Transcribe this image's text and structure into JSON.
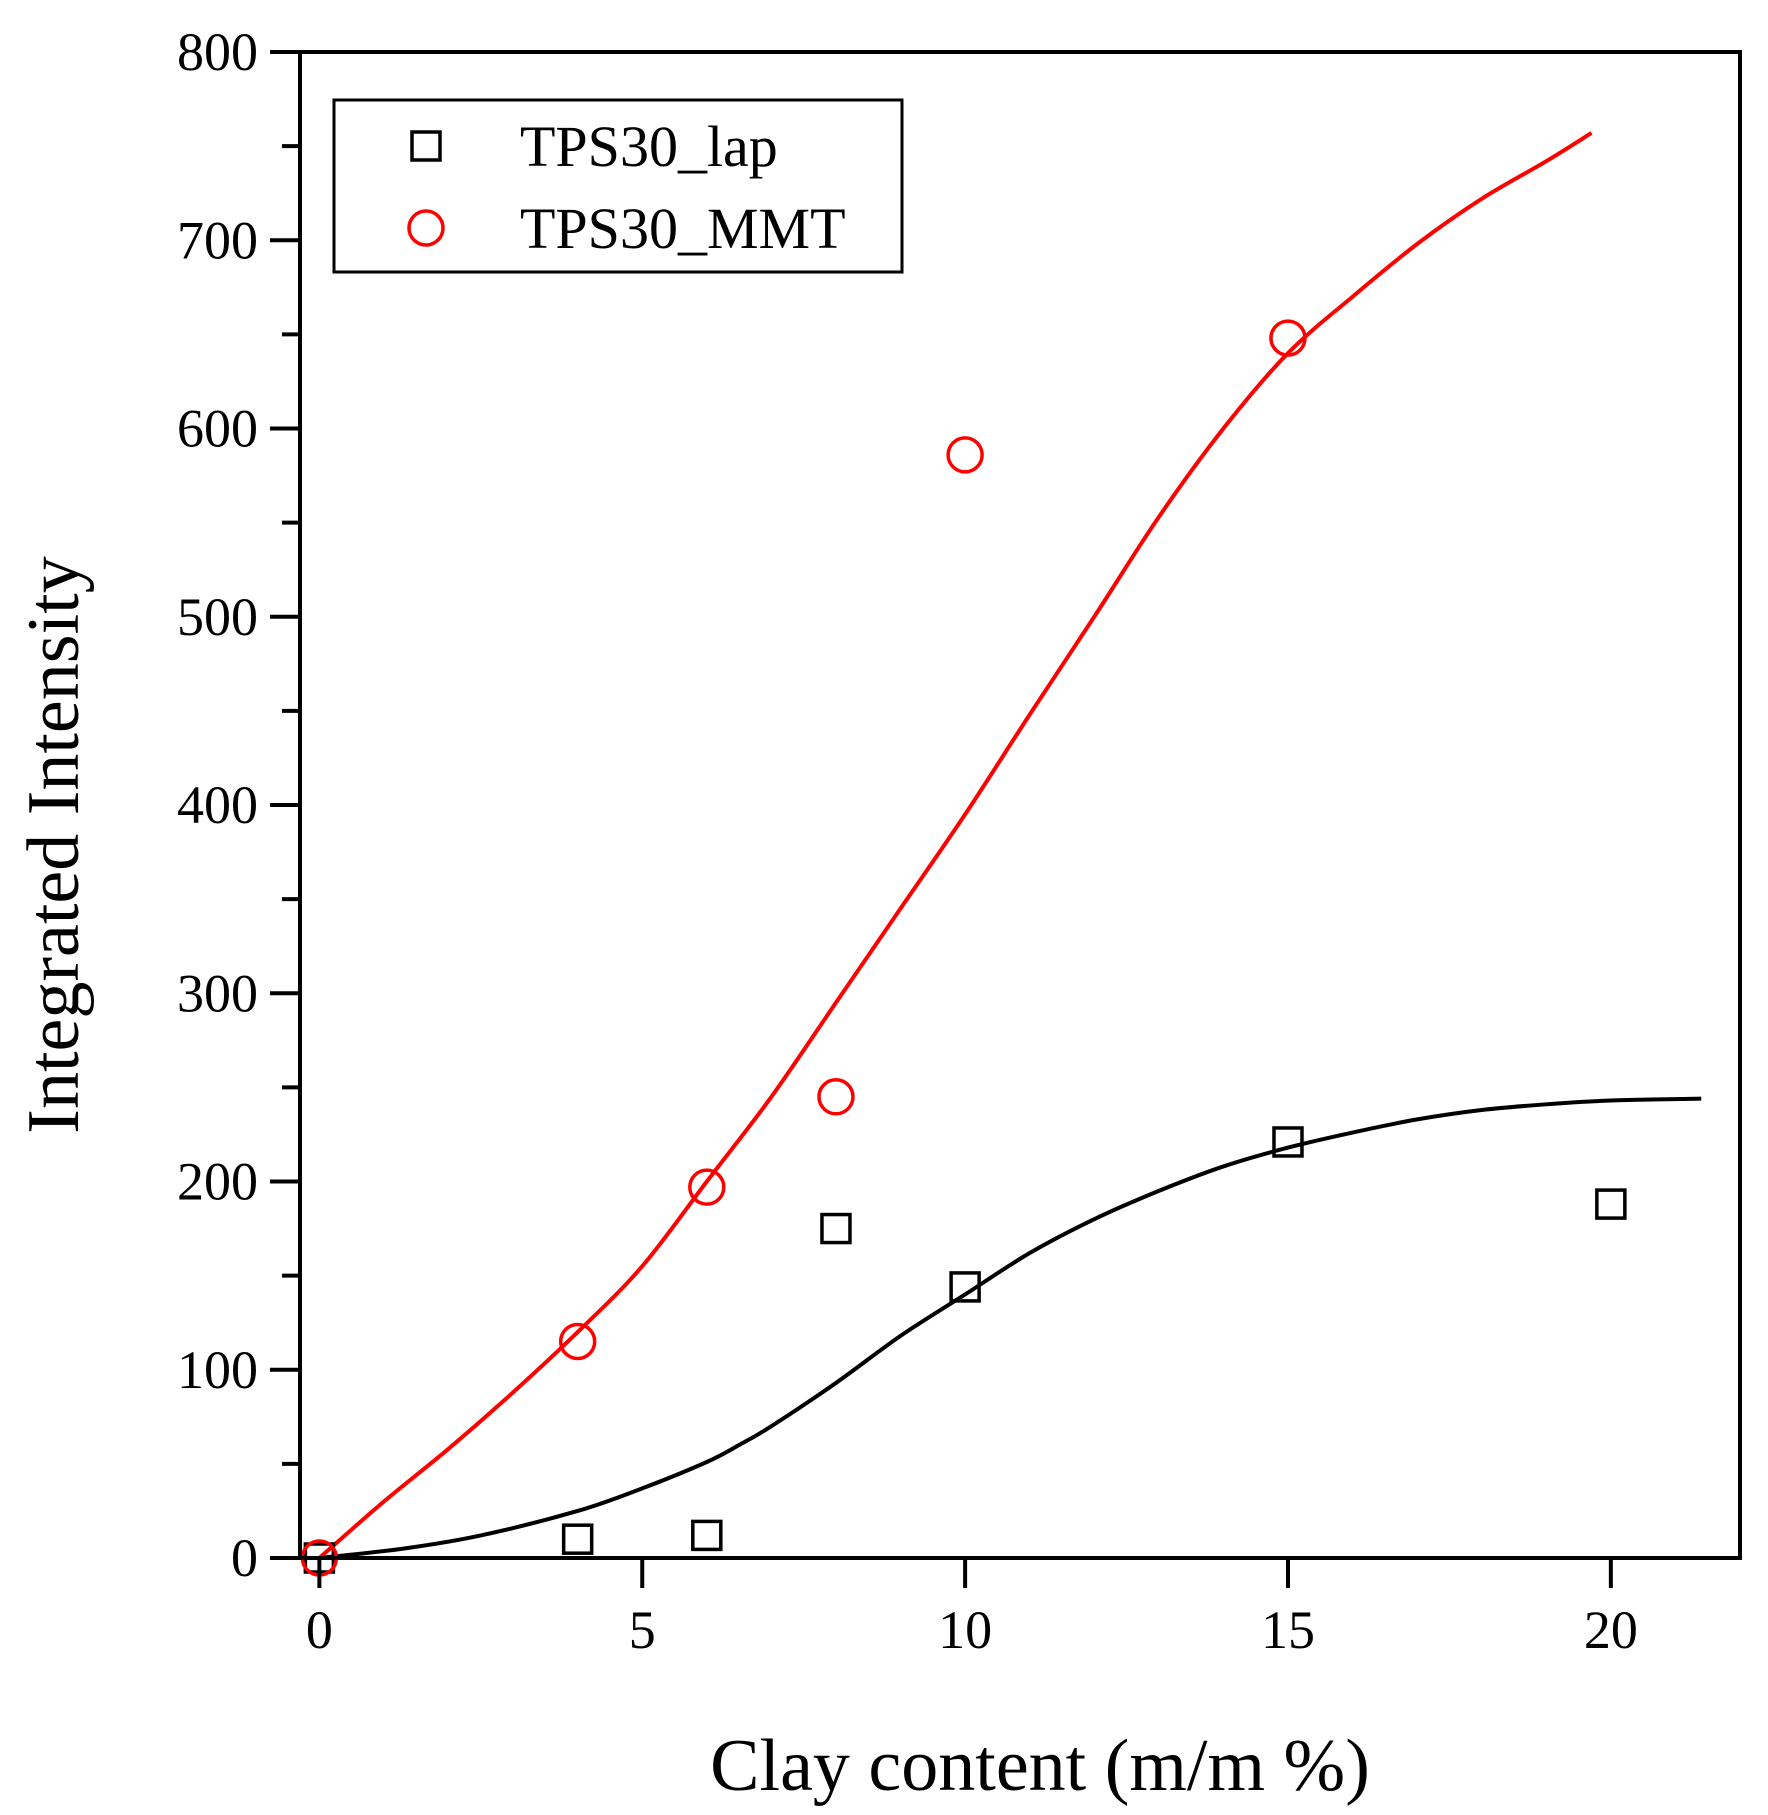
{
  "chart_data": {
    "type": "scatter",
    "title": "",
    "xlabel": "Clay content (m/m %)",
    "ylabel": "Integrated Intensity",
    "xlim": [
      -0.3,
      22
    ],
    "ylim": [
      0,
      800
    ],
    "x_ticks": [
      0,
      5,
      10,
      15,
      20
    ],
    "x_tick_labels": [
      "0",
      "5",
      "10",
      "15",
      "20"
    ],
    "y_ticks": [
      0,
      100,
      200,
      300,
      400,
      500,
      600,
      700,
      800
    ],
    "y_tick_labels": [
      "0",
      "100",
      "200",
      "300",
      "400",
      "500",
      "600",
      "700",
      "800"
    ],
    "legend_position": "top-left",
    "series": [
      {
        "name": "TPS30_lap",
        "marker": "square",
        "color": "#000000",
        "points": [
          [
            0,
            0
          ],
          [
            4,
            10
          ],
          [
            6,
            12
          ],
          [
            8,
            175
          ],
          [
            10,
            144
          ],
          [
            15,
            221
          ],
          [
            20,
            188
          ]
        ],
        "fit": [
          [
            0,
            0
          ],
          [
            1.3,
            5
          ],
          [
            2.5,
            12
          ],
          [
            4,
            25
          ],
          [
            5,
            37
          ],
          [
            6,
            51
          ],
          [
            6.5,
            60
          ],
          [
            7,
            70
          ],
          [
            8,
            93
          ],
          [
            9,
            118
          ],
          [
            10,
            140
          ],
          [
            11,
            162
          ],
          [
            12,
            180
          ],
          [
            13,
            195
          ],
          [
            14,
            208
          ],
          [
            15,
            218
          ],
          [
            16,
            226
          ],
          [
            17,
            233
          ],
          [
            18,
            238
          ],
          [
            19,
            241
          ],
          [
            20,
            243
          ],
          [
            21.4,
            244
          ]
        ]
      },
      {
        "name": "TPS30_MMT",
        "marker": "circle",
        "color": "#ff0000",
        "points": [
          [
            0,
            0
          ],
          [
            4,
            115
          ],
          [
            6,
            197
          ],
          [
            8,
            245
          ],
          [
            10,
            586
          ],
          [
            15,
            648
          ]
        ],
        "fit": [
          [
            0,
            0
          ],
          [
            1,
            30
          ],
          [
            2,
            58
          ],
          [
            3,
            88
          ],
          [
            4,
            120
          ],
          [
            5,
            155
          ],
          [
            6,
            200
          ],
          [
            7,
            245
          ],
          [
            8,
            295
          ],
          [
            9,
            345
          ],
          [
            10,
            395
          ],
          [
            11,
            448
          ],
          [
            12,
            500
          ],
          [
            13,
            553
          ],
          [
            14,
            600
          ],
          [
            15,
            640
          ],
          [
            16,
            670
          ],
          [
            17,
            698
          ],
          [
            18,
            722
          ],
          [
            19,
            742
          ],
          [
            19.7,
            757
          ]
        ]
      }
    ]
  }
}
